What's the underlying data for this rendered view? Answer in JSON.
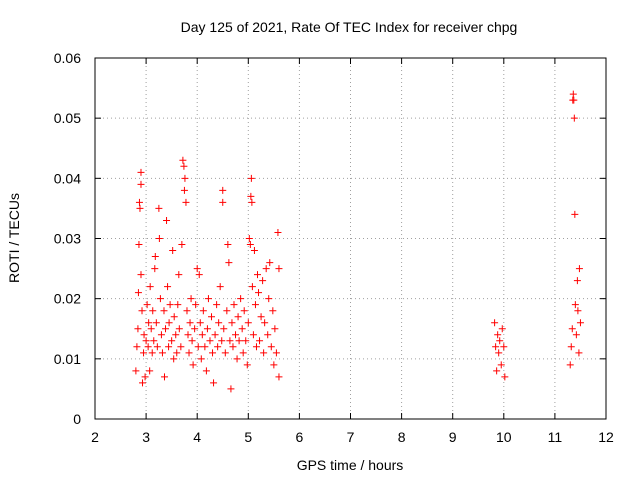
{
  "chart_data": {
    "type": "scatter",
    "title": "Day 125 of 2021, Rate Of TEC Index for receiver chpg",
    "xlabel": "GPS time / hours",
    "ylabel": "ROTI / TECUs",
    "xlim": [
      2,
      12
    ],
    "ylim": [
      0,
      0.06
    ],
    "x_ticks": [
      2,
      3,
      4,
      5,
      6,
      7,
      8,
      9,
      10,
      11,
      12
    ],
    "x_tick_labels": [
      "2",
      "3",
      "4",
      "5",
      "6",
      "7",
      "8",
      "9",
      "10",
      "11",
      "12"
    ],
    "y_ticks": [
      0,
      0.01,
      0.02,
      0.03,
      0.04,
      0.05,
      0.06
    ],
    "y_tick_labels": [
      "0",
      "0.01",
      "0.02",
      "0.03",
      "0.04",
      "0.05",
      "0.06"
    ],
    "grid": true,
    "marker": "+",
    "series": [
      {
        "name": "ROTI",
        "color": "#ff0000",
        "points": [
          [
            2.8,
            0.008
          ],
          [
            2.82,
            0.012
          ],
          [
            2.84,
            0.015
          ],
          [
            2.85,
            0.021
          ],
          [
            2.86,
            0.029
          ],
          [
            2.87,
            0.036
          ],
          [
            2.88,
            0.035
          ],
          [
            2.9,
            0.041
          ],
          [
            2.9,
            0.039
          ],
          [
            2.9,
            0.024
          ],
          [
            2.92,
            0.018
          ],
          [
            2.93,
            0.006
          ],
          [
            2.95,
            0.011
          ],
          [
            2.96,
            0.014
          ],
          [
            2.98,
            0.007
          ],
          [
            3.0,
            0.013
          ],
          [
            3.02,
            0.019
          ],
          [
            3.04,
            0.012
          ],
          [
            3.05,
            0.016
          ],
          [
            3.07,
            0.008
          ],
          [
            3.08,
            0.022
          ],
          [
            3.1,
            0.015
          ],
          [
            3.12,
            0.011
          ],
          [
            3.13,
            0.018
          ],
          [
            3.15,
            0.013
          ],
          [
            3.17,
            0.025
          ],
          [
            3.18,
            0.027
          ],
          [
            3.2,
            0.016
          ],
          [
            3.22,
            0.012
          ],
          [
            3.25,
            0.035
          ],
          [
            3.26,
            0.03
          ],
          [
            3.28,
            0.02
          ],
          [
            3.3,
            0.014
          ],
          [
            3.32,
            0.011
          ],
          [
            3.35,
            0.018
          ],
          [
            3.36,
            0.007
          ],
          [
            3.38,
            0.015
          ],
          [
            3.4,
            0.033
          ],
          [
            3.42,
            0.022
          ],
          [
            3.44,
            0.012
          ],
          [
            3.45,
            0.016
          ],
          [
            3.47,
            0.019
          ],
          [
            3.5,
            0.013
          ],
          [
            3.52,
            0.028
          ],
          [
            3.54,
            0.01
          ],
          [
            3.55,
            0.017
          ],
          [
            3.58,
            0.014
          ],
          [
            3.6,
            0.011
          ],
          [
            3.62,
            0.019
          ],
          [
            3.64,
            0.024
          ],
          [
            3.65,
            0.015
          ],
          [
            3.68,
            0.012
          ],
          [
            3.7,
            0.029
          ],
          [
            3.72,
            0.043
          ],
          [
            3.74,
            0.042
          ],
          [
            3.75,
            0.038
          ],
          [
            3.76,
            0.04
          ],
          [
            3.78,
            0.036
          ],
          [
            3.8,
            0.018
          ],
          [
            3.82,
            0.014
          ],
          [
            3.84,
            0.011
          ],
          [
            3.86,
            0.016
          ],
          [
            3.88,
            0.02
          ],
          [
            3.9,
            0.013
          ],
          [
            3.92,
            0.009
          ],
          [
            3.95,
            0.015
          ],
          [
            3.97,
            0.019
          ],
          [
            4.0,
            0.025
          ],
          [
            4.02,
            0.012
          ],
          [
            4.04,
            0.024
          ],
          [
            4.06,
            0.016
          ],
          [
            4.08,
            0.01
          ],
          [
            4.1,
            0.014
          ],
          [
            4.12,
            0.018
          ],
          [
            4.15,
            0.012
          ],
          [
            4.18,
            0.008
          ],
          [
            4.2,
            0.015
          ],
          [
            4.22,
            0.02
          ],
          [
            4.25,
            0.013
          ],
          [
            4.28,
            0.017
          ],
          [
            4.3,
            0.011
          ],
          [
            4.32,
            0.006
          ],
          [
            4.35,
            0.014
          ],
          [
            4.38,
            0.019
          ],
          [
            4.4,
            0.012
          ],
          [
            4.42,
            0.016
          ],
          [
            4.45,
            0.022
          ],
          [
            4.48,
            0.013
          ],
          [
            4.5,
            0.038
          ],
          [
            4.5,
            0.036
          ],
          [
            4.52,
            0.015
          ],
          [
            4.55,
            0.011
          ],
          [
            4.58,
            0.018
          ],
          [
            4.6,
            0.029
          ],
          [
            4.62,
            0.026
          ],
          [
            4.64,
            0.013
          ],
          [
            4.66,
            0.005
          ],
          [
            4.68,
            0.016
          ],
          [
            4.7,
            0.012
          ],
          [
            4.72,
            0.019
          ],
          [
            4.75,
            0.014
          ],
          [
            4.78,
            0.01
          ],
          [
            4.8,
            0.017
          ],
          [
            4.82,
            0.013
          ],
          [
            4.85,
            0.02
          ],
          [
            4.88,
            0.015
          ],
          [
            4.9,
            0.011
          ],
          [
            4.92,
            0.018
          ],
          [
            4.95,
            0.013
          ],
          [
            4.98,
            0.009
          ],
          [
            5.0,
            0.016
          ],
          [
            5.02,
            0.03
          ],
          [
            5.04,
            0.029
          ],
          [
            5.05,
            0.037
          ],
          [
            5.06,
            0.04
          ],
          [
            5.07,
            0.036
          ],
          [
            5.08,
            0.022
          ],
          [
            5.1,
            0.014
          ],
          [
            5.12,
            0.028
          ],
          [
            5.14,
            0.019
          ],
          [
            5.16,
            0.012
          ],
          [
            5.18,
            0.024
          ],
          [
            5.2,
            0.021
          ],
          [
            5.22,
            0.013
          ],
          [
            5.25,
            0.017
          ],
          [
            5.28,
            0.023
          ],
          [
            5.3,
            0.011
          ],
          [
            5.32,
            0.016
          ],
          [
            5.35,
            0.025
          ],
          [
            5.38,
            0.014
          ],
          [
            5.4,
            0.02
          ],
          [
            5.42,
            0.026
          ],
          [
            5.45,
            0.012
          ],
          [
            5.48,
            0.018
          ],
          [
            5.5,
            0.009
          ],
          [
            5.52,
            0.015
          ],
          [
            5.55,
            0.011
          ],
          [
            5.58,
            0.031
          ],
          [
            5.6,
            0.025
          ],
          [
            5.6,
            0.007
          ],
          [
            9.82,
            0.016
          ],
          [
            9.84,
            0.012
          ],
          [
            9.86,
            0.008
          ],
          [
            9.88,
            0.014
          ],
          [
            9.9,
            0.011
          ],
          [
            9.92,
            0.013
          ],
          [
            9.95,
            0.009
          ],
          [
            9.97,
            0.015
          ],
          [
            10.0,
            0.012
          ],
          [
            10.02,
            0.007
          ],
          [
            11.3,
            0.009
          ],
          [
            11.32,
            0.012
          ],
          [
            11.34,
            0.015
          ],
          [
            11.35,
            0.053
          ],
          [
            11.36,
            0.054
          ],
          [
            11.37,
            0.053
          ],
          [
            11.38,
            0.05
          ],
          [
            11.39,
            0.034
          ],
          [
            11.4,
            0.019
          ],
          [
            11.42,
            0.014
          ],
          [
            11.44,
            0.023
          ],
          [
            11.45,
            0.018
          ],
          [
            11.47,
            0.011
          ],
          [
            11.48,
            0.025
          ],
          [
            11.5,
            0.016
          ]
        ]
      }
    ]
  }
}
